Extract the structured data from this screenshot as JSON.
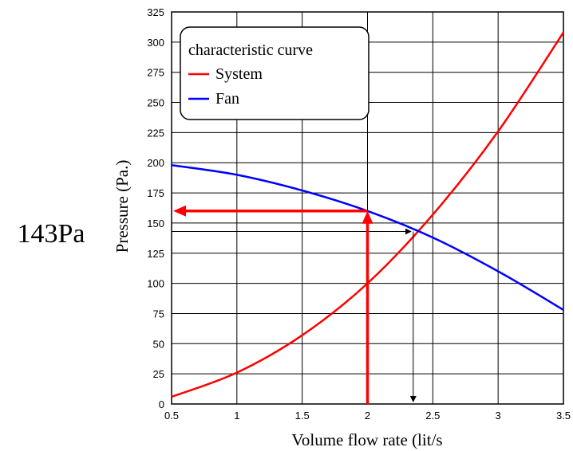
{
  "chart_data": {
    "type": "line",
    "xlabel": "Volume flow rate (lit/s",
    "ylabel": "Pressure (Pa.)",
    "xlim": [
      0.5,
      3.5
    ],
    "ylim": [
      0,
      325
    ],
    "x_ticks": [
      "0.5",
      "1",
      "1.5",
      "2",
      "2.5",
      "3",
      "3.5"
    ],
    "y_ticks": [
      "0",
      "25",
      "50",
      "75",
      "100",
      "125",
      "150",
      "175",
      "200",
      "225",
      "250",
      "275",
      "300",
      "325"
    ],
    "grid": true,
    "legend": {
      "title": "characteristic curve",
      "placement": "top-left",
      "entries": [
        "System",
        "Fan"
      ]
    },
    "series": [
      {
        "name": "System",
        "color": "#ff0000",
        "x": [
          0.5,
          1.0,
          1.5,
          2.0,
          2.5,
          3.0,
          3.5
        ],
        "y": [
          6,
          26,
          57,
          100,
          157,
          226,
          308
        ]
      },
      {
        "name": "Fan",
        "color": "#0000ff",
        "x": [
          0.5,
          1.0,
          1.5,
          2.0,
          2.5,
          3.0,
          3.5
        ],
        "y": [
          198,
          190,
          177,
          160,
          138,
          110,
          78
        ]
      }
    ],
    "annotations": {
      "operating_label": "143Pa",
      "design_point": {
        "x": 2.0,
        "y": 160,
        "color": "#ff0000"
      },
      "operating_point": {
        "x": 2.35,
        "y": 143,
        "color": "#000000"
      }
    }
  }
}
